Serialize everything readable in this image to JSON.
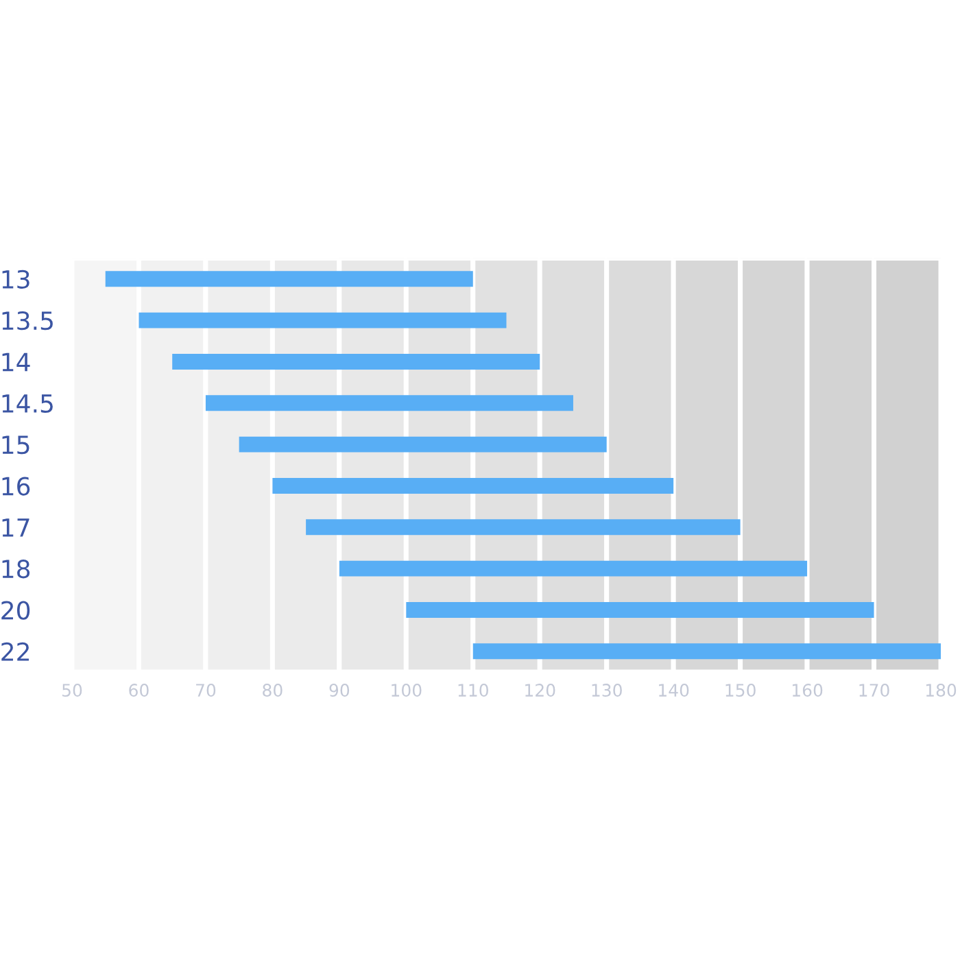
{
  "chart_data": {
    "type": "bar",
    "orientation": "horizontal",
    "categories": [
      "13",
      "13.5",
      "14",
      "14.5",
      "15",
      "16",
      "17",
      "18",
      "20",
      "22"
    ],
    "base": [
      55,
      60,
      65,
      70,
      75,
      80,
      85,
      90,
      100,
      110
    ],
    "values": [
      55,
      55,
      55,
      55,
      55,
      60,
      65,
      70,
      70,
      70
    ],
    "color": "#58aef5",
    "xlim": [
      50,
      180
    ],
    "xticks": [
      50,
      60,
      70,
      80,
      90,
      100,
      110,
      120,
      130,
      140,
      150,
      160,
      170,
      180
    ],
    "bands": [
      {
        "axis": "x",
        "from": 50,
        "to": 60,
        "color": "#f5f5f5"
      },
      {
        "axis": "x",
        "from": 60,
        "to": 70,
        "color": "#f1f1f1"
      },
      {
        "axis": "x",
        "from": 70,
        "to": 80,
        "color": "#eeeeee"
      },
      {
        "axis": "x",
        "from": 80,
        "to": 90,
        "color": "#ebebeb"
      },
      {
        "axis": "x",
        "from": 90,
        "to": 100,
        "color": "#e8e8e8"
      },
      {
        "axis": "x",
        "from": 100,
        "to": 110,
        "color": "#e4e4e4"
      },
      {
        "axis": "x",
        "from": 110,
        "to": 120,
        "color": "#e1e1e1"
      },
      {
        "axis": "x",
        "from": 120,
        "to": 130,
        "color": "#dedede"
      },
      {
        "axis": "x",
        "from": 130,
        "to": 140,
        "color": "#dbdbdb"
      },
      {
        "axis": "x",
        "from": 140,
        "to": 150,
        "color": "#d7d7d7"
      },
      {
        "axis": "x",
        "from": 150,
        "to": 160,
        "color": "#d5d5d5"
      },
      {
        "axis": "x",
        "from": 160,
        "to": 170,
        "color": "#d3d3d3"
      },
      {
        "axis": "x",
        "from": 170,
        "to": 180,
        "color": "#d1d1d1"
      }
    ],
    "grid": false,
    "legend": false
  }
}
